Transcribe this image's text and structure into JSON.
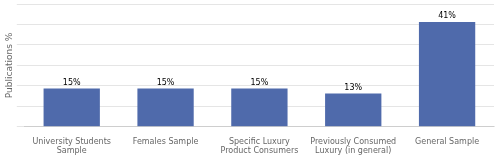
{
  "chart_data": {
    "type": "bar",
    "categories": [
      "University Students\nSample",
      "Females Sample",
      "Specific Luxury\nProduct Consumers",
      "Previously Consumed\nLuxury (in general)",
      "General Sample"
    ],
    "values": [
      15,
      15,
      15,
      13,
      41
    ],
    "value_labels": [
      "15%",
      "15%",
      "15%",
      "13%",
      "41%"
    ],
    "data_labels": true,
    "color": "#4f6aab",
    "ylabel": "Publications %",
    "ylim": [
      0,
      48
    ],
    "yticks": [
      0,
      8,
      16,
      24,
      32,
      40,
      48
    ],
    "grid": true,
    "tick_labels": "x"
  }
}
